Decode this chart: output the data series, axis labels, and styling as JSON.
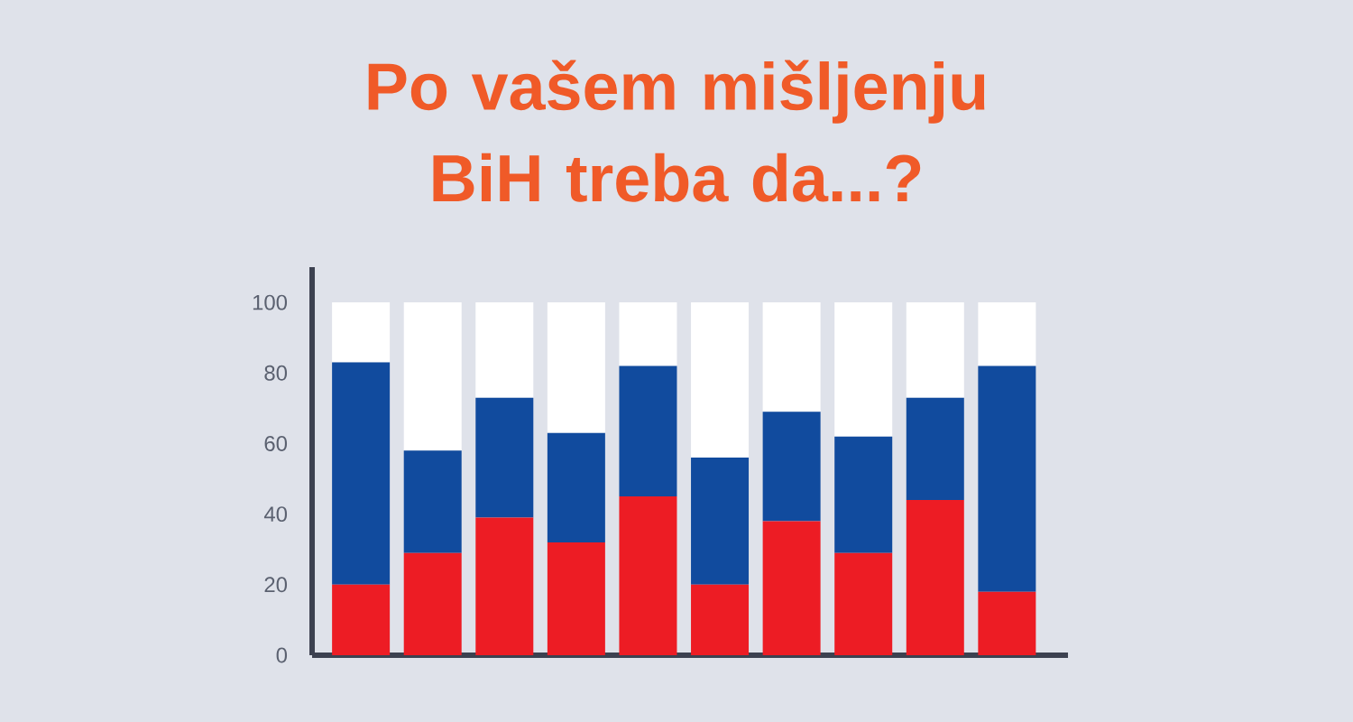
{
  "chart_data": {
    "type": "bar",
    "title": "Po vašem mišljenju BiH treba da...?",
    "categories": [
      null,
      null,
      null,
      null,
      null,
      null,
      null,
      null,
      null,
      null
    ],
    "stacked": true,
    "series": [
      {
        "color": "#ed1c24",
        "values": [
          20,
          29,
          39,
          32,
          45,
          20,
          38,
          29,
          44,
          18
        ]
      },
      {
        "color": "#114b9e",
        "values": [
          63,
          29,
          34,
          31,
          37,
          36,
          31,
          33,
          29,
          64
        ]
      },
      {
        "color": "#ffffff",
        "values": [
          17,
          42,
          27,
          37,
          18,
          44,
          31,
          38,
          27,
          18
        ]
      }
    ],
    "ylim": [
      0,
      110
    ],
    "yticks": [
      0,
      20,
      40,
      60,
      80,
      100
    ],
    "tick_labels": "y",
    "grid": false,
    "legend": false
  }
}
